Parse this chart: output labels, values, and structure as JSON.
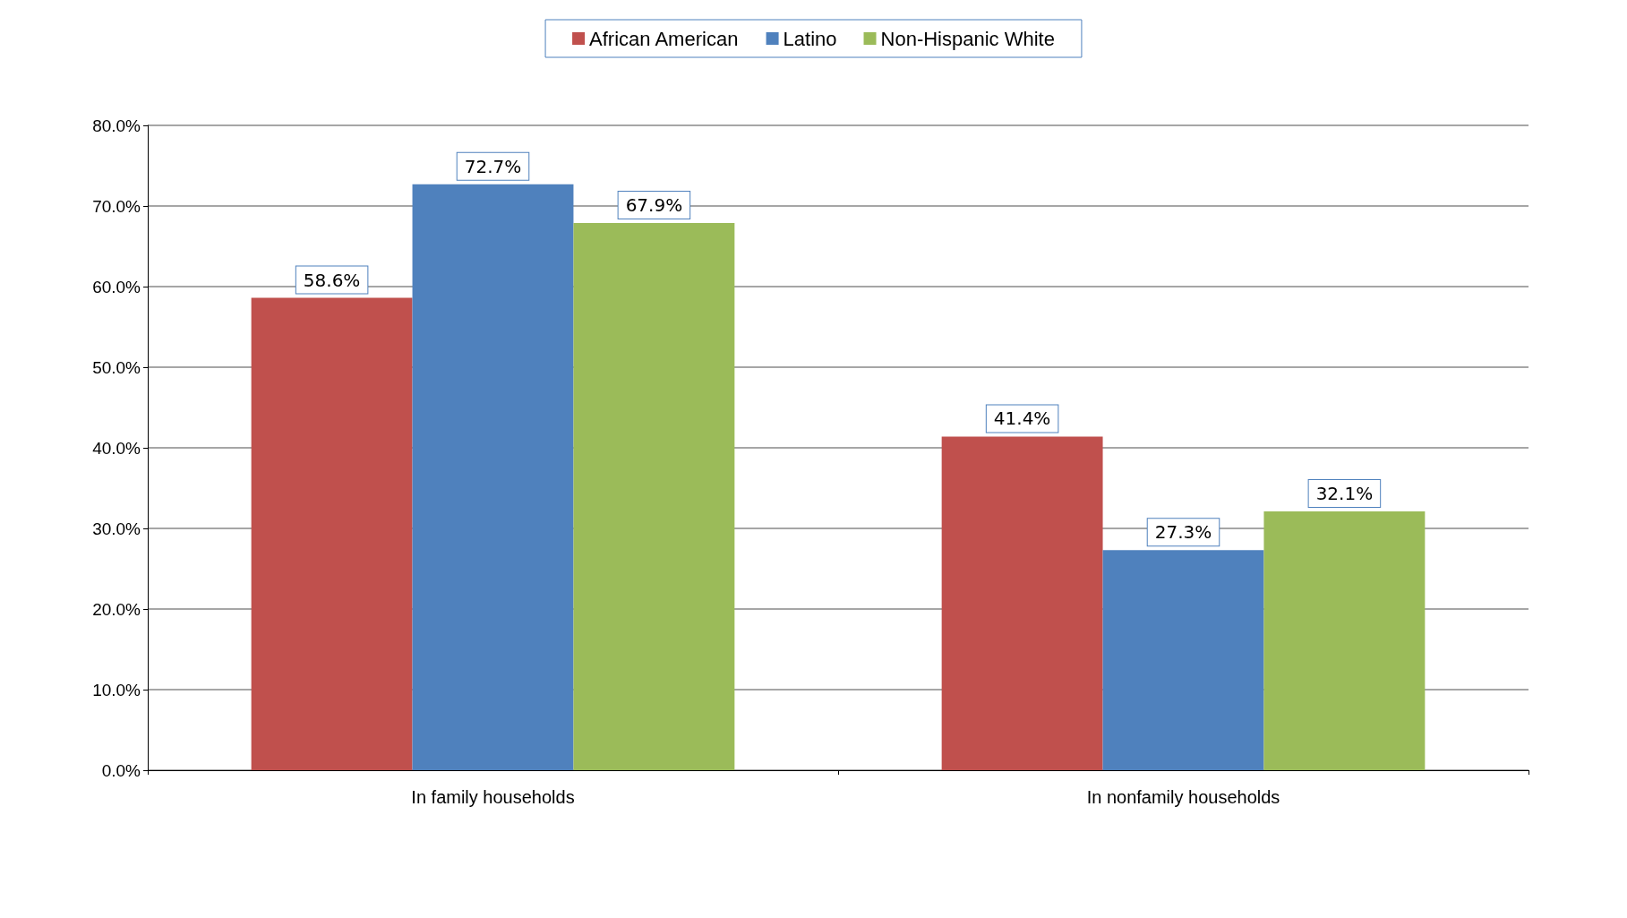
{
  "chart_data": {
    "type": "bar",
    "categories": [
      "In family households",
      "In nonfamily households"
    ],
    "series": [
      {
        "name": "African American",
        "color": "#c0504d",
        "values": [
          58.6,
          41.4
        ],
        "value_labels": [
          "58.6%",
          "41.4%"
        ]
      },
      {
        "name": "Latino",
        "color": "#4f81bd",
        "values": [
          72.7,
          27.3
        ],
        "value_labels": [
          "72.7%",
          "27.3%"
        ]
      },
      {
        "name": "Non-Hispanic White",
        "color": "#9bbb59",
        "values": [
          67.9,
          32.1
        ],
        "value_labels": [
          "67.9%",
          "32.1%"
        ]
      }
    ],
    "ylim": [
      0,
      80
    ],
    "yticks": [
      {
        "value": 0,
        "label": "0.0%"
      },
      {
        "value": 10,
        "label": "10.0%"
      },
      {
        "value": 20,
        "label": "20.0%"
      },
      {
        "value": 30,
        "label": "30.0%"
      },
      {
        "value": 40,
        "label": "40.0%"
      },
      {
        "value": 50,
        "label": "50.0%"
      },
      {
        "value": 60,
        "label": "60.0%"
      },
      {
        "value": 70,
        "label": "70.0%"
      },
      {
        "value": 80,
        "label": "80.0%"
      }
    ],
    "grid": "y",
    "legend": "top"
  }
}
